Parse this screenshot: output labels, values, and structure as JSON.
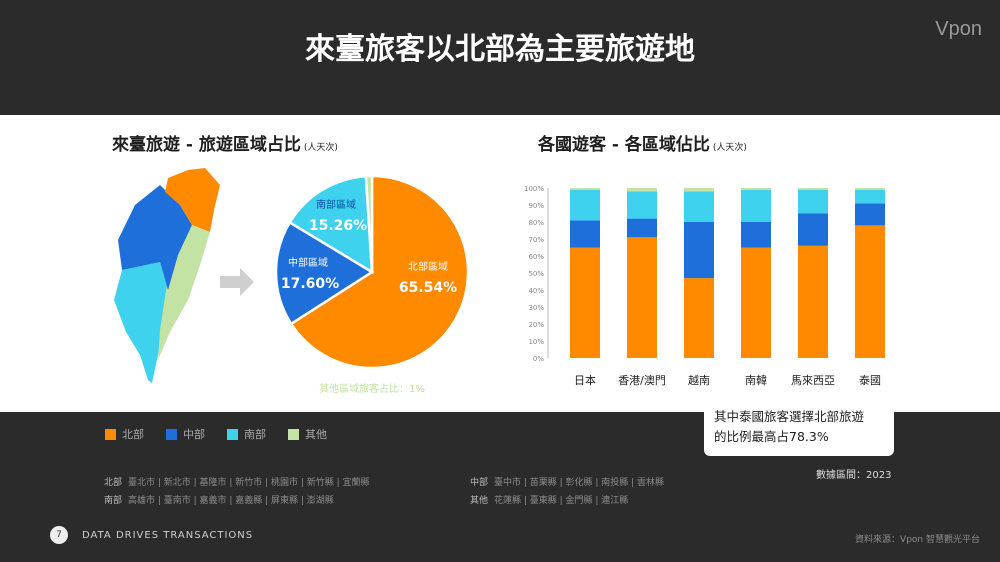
{
  "header": {
    "title": "來臺旅客以北部為主要旅遊地",
    "logo": "Vpon"
  },
  "left_chart": {
    "title": "來臺旅遊 - 旅遊區域占比",
    "unit": "(人天次)"
  },
  "right_chart": {
    "title": "各國遊客 - 各區域佔比",
    "unit": "(人天次)"
  },
  "legend": [
    {
      "label": "北部",
      "color": "#ff8a00"
    },
    {
      "label": "中部",
      "color": "#1e6fd9"
    },
    {
      "label": "南部",
      "color": "#3ed2ee"
    },
    {
      "label": "其他",
      "color": "#c2e3a3"
    }
  ],
  "callout": {
    "line1": "其中泰國旅客選擇北部旅遊",
    "line2": "的比例最高占78.3%"
  },
  "data_period": "數據區間：2023",
  "regions": {
    "north_label": "北部",
    "north_row1": "臺北市 | 新北市 | 基隆市 | 新竹市 | 桃園市 | 新竹縣 | 宜蘭縣",
    "south_label": "南部",
    "south_row1": "高雄市 | 臺南市 | 嘉義市 | 嘉義縣 | 屏東縣 | 澎湖縣",
    "central_label": "中部",
    "central_row1": "臺中市 | 苗栗縣 | 彰化縣 | 南投縣 | 雲林縣",
    "other_label": "其他",
    "other_row1": "花蓮縣 | 臺東縣 | 金門縣 | 連江縣"
  },
  "footer": {
    "page_number": "7",
    "tagline": "DATA DRIVES TRANSACTIONS",
    "source": "資料來源：Vpon 智慧觀光平台"
  },
  "chart_data": [
    {
      "type": "pie",
      "title": "來臺旅遊 - 旅遊區域占比",
      "slices": [
        {
          "name": "北部區域",
          "value": 65.54,
          "label": "65.54%",
          "color": "#ff8a00"
        },
        {
          "name": "中部區域",
          "value": 17.6,
          "label": "17.60%",
          "color": "#1e6fd9"
        },
        {
          "name": "南部區域",
          "value": 15.26,
          "label": "15.26%",
          "color": "#3ed2ee"
        },
        {
          "name": "其他區域",
          "value": 1.0,
          "label": "其他區域旅客占比：1%",
          "color": "#c2e3a3"
        }
      ]
    },
    {
      "type": "bar",
      "stacked": true,
      "title": "各國遊客 - 各區域佔比",
      "categories": [
        "日本",
        "香港/澳門",
        "越南",
        "南韓",
        "馬來西亞",
        "泰國"
      ],
      "ylim": [
        0,
        100
      ],
      "yticks": [
        "0%",
        "10%",
        "20%",
        "30%",
        "40%",
        "50%",
        "60%",
        "70%",
        "80%",
        "90%",
        "100%"
      ],
      "grid": false,
      "series": [
        {
          "name": "北部",
          "color": "#ff8a00",
          "values": [
            65,
            71,
            47,
            65,
            66,
            78
          ]
        },
        {
          "name": "中部",
          "color": "#1e6fd9",
          "values": [
            16,
            11,
            33,
            15,
            19,
            13
          ]
        },
        {
          "name": "南部",
          "color": "#3ed2ee",
          "values": [
            18,
            16,
            18,
            19,
            14,
            8
          ]
        },
        {
          "name": "其他",
          "color": "#c2e3a3",
          "values": [
            1,
            2,
            2,
            1,
            1,
            1
          ]
        }
      ]
    }
  ]
}
